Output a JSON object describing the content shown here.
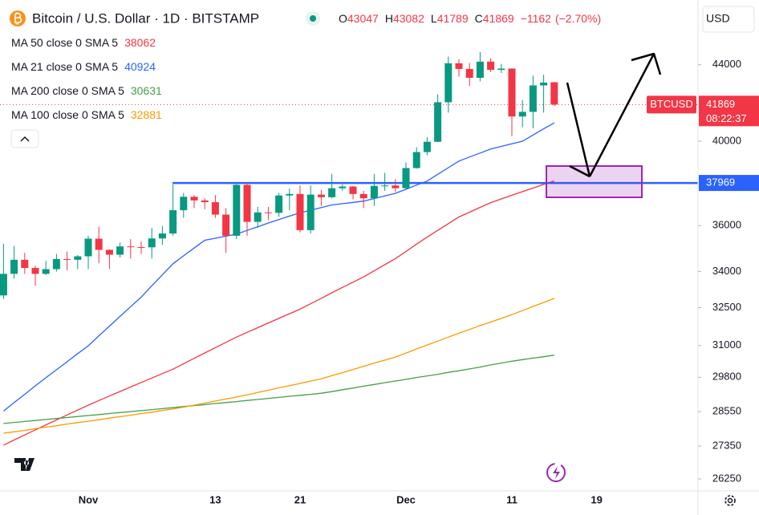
{
  "chart_data": {
    "type": "candlestick",
    "title": "Bitcoin / U.S. Dollar · 1D · BITSTAMP",
    "log_scale": true,
    "grid": false,
    "up_color": "#089981",
    "down_color": "#f23645",
    "ohlc_labels": [
      "O",
      "H",
      "L",
      "C"
    ],
    "change": {
      "value": -1162,
      "label": "−1162"
    },
    "change_pct": {
      "value": -2.7,
      "label": "(−2.70%)"
    },
    "symbol_tag": "BTCUSD",
    "countdown": "08:22:37",
    "currency": "USD",
    "level": {
      "value": 37969,
      "color": "#2962ff"
    },
    "categories": [
      null,
      null,
      null,
      null,
      null,
      null,
      null,
      null,
      "Nov",
      null,
      null,
      null,
      null,
      null,
      null,
      null,
      null,
      null,
      null,
      null,
      "13",
      null,
      null,
      null,
      null,
      null,
      null,
      null,
      "21",
      null,
      null,
      null,
      null,
      null,
      null,
      null,
      null,
      null,
      "Dec",
      null,
      null,
      null,
      null,
      null,
      null,
      null,
      null,
      null,
      "11",
      null,
      null,
      null,
      null,
      null,
      null,
      null,
      "19",
      null,
      null,
      null,
      null,
      null,
      null,
      null,
      null
    ],
    "open": [
      33000,
      33900,
      34500,
      34150,
      33900,
      34100,
      34530,
      34500,
      34650,
      35420,
      34930,
      34720,
      35080,
      35050,
      35040,
      35430,
      35650,
      36700,
      37320,
      37150,
      37070,
      36500,
      35550,
      37880,
      36170,
      36600,
      36580,
      37380,
      37450,
      35800,
      37420,
      37300,
      37720,
      37800,
      37450,
      37250,
      37830,
      37850,
      37720,
      38680,
      39460,
      39970,
      41990,
      44080,
      43770,
      43290,
      44170,
      43720,
      43790,
      41250,
      41490,
      42880,
      43047,
      null,
      null,
      null,
      null,
      null,
      null,
      null,
      null,
      null,
      null,
      null,
      null
    ],
    "high": [
      35200,
      35100,
      34800,
      34250,
      34450,
      34750,
      34850,
      34700,
      35550,
      35950,
      34950,
      35250,
      35400,
      35300,
      35900,
      35980,
      37900,
      37500,
      37400,
      37250,
      37400,
      36800,
      37950,
      37950,
      36850,
      36850,
      37500,
      37700,
      37850,
      37850,
      37650,
      38400,
      37900,
      37820,
      37600,
      38400,
      38450,
      38150,
      38950,
      39700,
      40200,
      42400,
      44450,
      44300,
      44100,
      44700,
      44360,
      44050,
      43800,
      42100,
      43400,
      43450,
      43082,
      null,
      null,
      null,
      null,
      null,
      null,
      null,
      null,
      null,
      null,
      null,
      null
    ],
    "low": [
      32850,
      33700,
      33900,
      33400,
      33850,
      34000,
      34050,
      34100,
      34100,
      34350,
      34100,
      34600,
      34550,
      34750,
      34550,
      35150,
      35550,
      36350,
      36800,
      36750,
      36350,
      34800,
      35400,
      35550,
      35900,
      36250,
      36400,
      36700,
      35700,
      35650,
      36900,
      37250,
      37600,
      37200,
      36800,
      36900,
      37600,
      37550,
      37650,
      38650,
      39300,
      39950,
      41450,
      43350,
      42850,
      43100,
      43600,
      43550,
      40250,
      40700,
      40650,
      41450,
      41789,
      null,
      null,
      null,
      null,
      null,
      null,
      null,
      null,
      null,
      null,
      null,
      null
    ],
    "close": [
      33900,
      34500,
      34150,
      33900,
      34100,
      34530,
      34500,
      34650,
      35420,
      34930,
      34720,
      35080,
      35050,
      35040,
      35430,
      35650,
      36700,
      37320,
      37150,
      37070,
      36500,
      35550,
      37880,
      36170,
      36600,
      36580,
      37380,
      37450,
      35800,
      37420,
      37300,
      37720,
      37800,
      37450,
      37250,
      37830,
      37850,
      37720,
      38680,
      39460,
      39970,
      41990,
      44080,
      43770,
      43290,
      44170,
      43720,
      43790,
      41250,
      41490,
      42880,
      43031,
      41869,
      null,
      null,
      null,
      null,
      null,
      null,
      null,
      null,
      null,
      null,
      null,
      null
    ],
    "series": [
      {
        "name": "MA 50 close 0 SMA 5",
        "color": "#f23645",
        "values": [
          27380,
          27555,
          27730,
          27905,
          28080,
          28255,
          28430,
          28605,
          28780,
          28945,
          29110,
          29275,
          29440,
          29605,
          29770,
          29935,
          30100,
          30305,
          30510,
          30715,
          30920,
          31125,
          31330,
          31515,
          31700,
          31885,
          32070,
          32255,
          32440,
          32660,
          32880,
          33110,
          33330,
          33550,
          33770,
          34030,
          34290,
          34550,
          34860,
          35180,
          35490,
          35790,
          36090,
          36390,
          36610,
          36830,
          37050,
          37220,
          37390,
          37560,
          37730,
          37900,
          38062,
          null,
          null,
          null,
          null,
          null,
          null,
          null,
          null,
          null,
          null,
          null,
          null
        ]
      },
      {
        "name": "MA 21 close 0 SMA 5",
        "color": "#2962ff",
        "values": [
          28570,
          28870,
          29170,
          29480,
          29780,
          30080,
          30380,
          30690,
          30990,
          31380,
          31760,
          32150,
          32540,
          32930,
          33400,
          33860,
          34330,
          34670,
          35010,
          35350,
          35440,
          35530,
          35620,
          35790,
          35950,
          36120,
          36270,
          36430,
          36580,
          36700,
          36820,
          36940,
          37000,
          37060,
          37120,
          37240,
          37360,
          37480,
          37670,
          37870,
          38060,
          38380,
          38700,
          39020,
          39220,
          39410,
          39610,
          39740,
          39870,
          40000,
          40310,
          40620,
          40924,
          null,
          null,
          null,
          null,
          null,
          null,
          null,
          null,
          null,
          null,
          null,
          null
        ]
      },
      {
        "name": "MA 200 close 0 SMA 5",
        "color": "#43a047",
        "values": [
          28130,
          28165,
          28200,
          28235,
          28270,
          28305,
          28340,
          28375,
          28410,
          28445,
          28480,
          28515,
          28550,
          28585,
          28620,
          28655,
          28690,
          28730,
          28765,
          28800,
          28840,
          28875,
          28910,
          28950,
          28985,
          29025,
          29060,
          29100,
          29135,
          29170,
          29210,
          29270,
          29340,
          29400,
          29470,
          29530,
          29600,
          29660,
          29720,
          29790,
          29850,
          29910,
          29980,
          30040,
          30110,
          30180,
          30260,
          30330,
          30400,
          30460,
          30520,
          30570,
          30631,
          null,
          null,
          null,
          null,
          null,
          null,
          null,
          null,
          null,
          null,
          null,
          null
        ]
      },
      {
        "name": "MA 100 close 0 SMA 5",
        "color": "#ff9800",
        "values": [
          27790,
          27840,
          27890,
          27950,
          28000,
          28050,
          28110,
          28160,
          28210,
          28260,
          28320,
          28370,
          28420,
          28480,
          28530,
          28590,
          28640,
          28710,
          28780,
          28850,
          28930,
          29000,
          29070,
          29150,
          29240,
          29320,
          29410,
          29490,
          29570,
          29660,
          29740,
          29860,
          29970,
          30090,
          30210,
          30330,
          30440,
          30560,
          30710,
          30870,
          31020,
          31170,
          31330,
          31480,
          31630,
          31780,
          31920,
          32070,
          32220,
          32380,
          32550,
          32710,
          32881,
          null,
          null,
          null,
          null,
          null,
          null,
          null,
          null,
          null,
          null,
          null,
          null
        ]
      }
    ],
    "ylim": [
      25860,
      47700
    ],
    "yticks": [
      26250,
      27350,
      28550,
      29800,
      31000,
      32500,
      34000,
      36000,
      40000,
      44000
    ]
  }
}
